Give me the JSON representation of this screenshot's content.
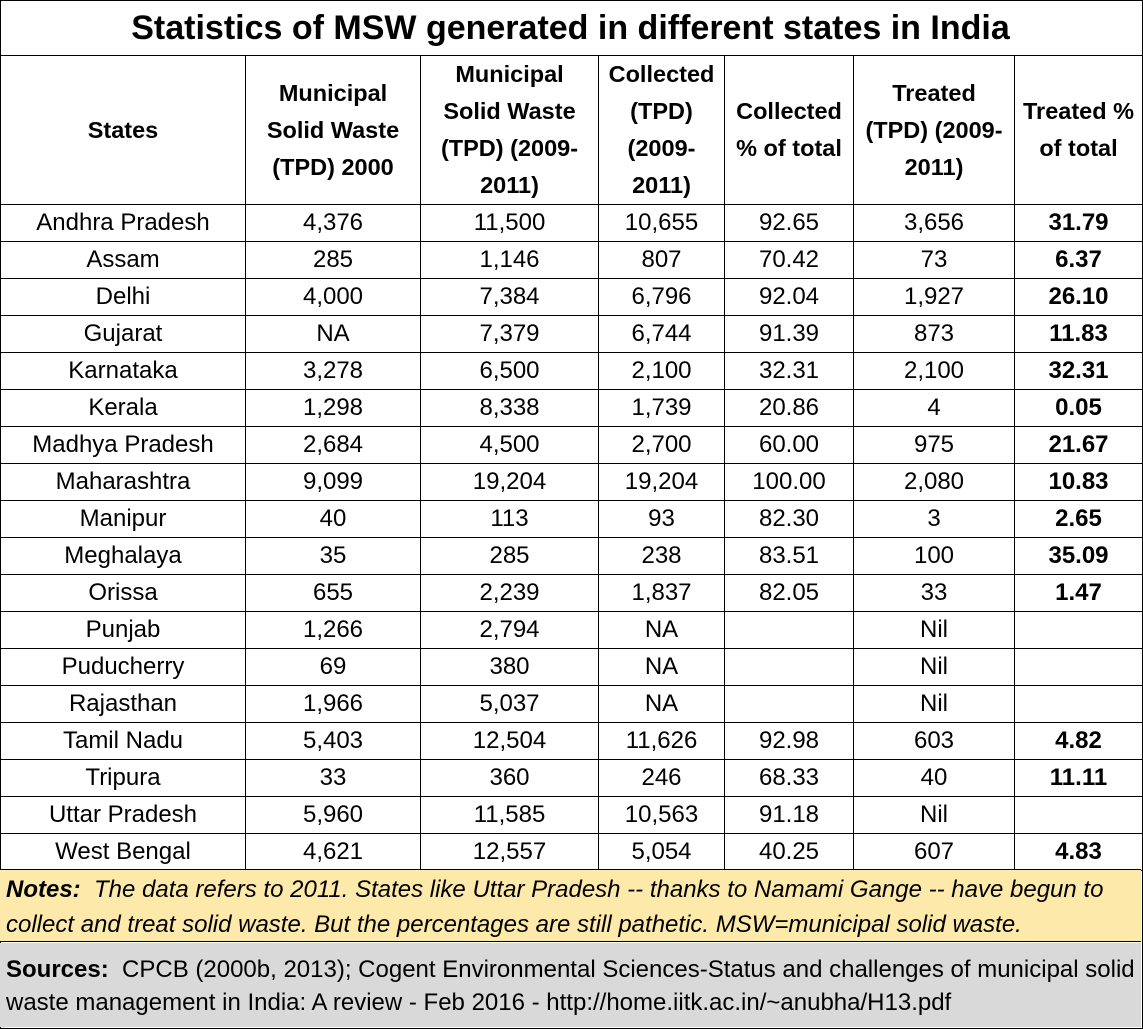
{
  "title": "Statistics of MSW generated in different states in India",
  "chart_data": {
    "type": "table",
    "title": "Statistics of MSW generated in different states in India",
    "columns": [
      "States",
      "Municipal Solid Waste (TPD) 2000",
      "Municipal Solid Waste (TPD) (2009-2011)",
      "Collected (TPD) (2009-2011)",
      "Collected % of total",
      "Treated (TPD) (2009-2011)",
      "Treated % of total"
    ],
    "rows": [
      [
        "Andhra Pradesh",
        "4,376",
        "11,500",
        "10,655",
        "92.65",
        "3,656",
        "31.79"
      ],
      [
        "Assam",
        "285",
        "1,146",
        "807",
        "70.42",
        "73",
        "6.37"
      ],
      [
        "Delhi",
        "4,000",
        "7,384",
        "6,796",
        "92.04",
        "1,927",
        "26.10"
      ],
      [
        "Gujarat",
        "NA",
        "7,379",
        "6,744",
        "91.39",
        "873",
        "11.83"
      ],
      [
        "Karnataka",
        "3,278",
        "6,500",
        "2,100",
        "32.31",
        "2,100",
        "32.31"
      ],
      [
        "Kerala",
        "1,298",
        "8,338",
        "1,739",
        "20.86",
        "4",
        "0.05"
      ],
      [
        "Madhya Pradesh",
        "2,684",
        "4,500",
        "2,700",
        "60.00",
        "975",
        "21.67"
      ],
      [
        "Maharashtra",
        "9,099",
        "19,204",
        "19,204",
        "100.00",
        "2,080",
        "10.83"
      ],
      [
        "Manipur",
        "40",
        "113",
        "93",
        "82.30",
        "3",
        "2.65"
      ],
      [
        "Meghalaya",
        "35",
        "285",
        "238",
        "83.51",
        "100",
        "35.09"
      ],
      [
        "Orissa",
        "655",
        "2,239",
        "1,837",
        "82.05",
        "33",
        "1.47"
      ],
      [
        "Punjab",
        "1,266",
        "2,794",
        "NA",
        "",
        "Nil",
        ""
      ],
      [
        "Puducherry",
        "69",
        "380",
        "NA",
        "",
        "Nil",
        ""
      ],
      [
        "Rajasthan",
        "1,966",
        "5,037",
        "NA",
        "",
        "Nil",
        ""
      ],
      [
        "Tamil Nadu",
        "5,403",
        "12,504",
        "11,626",
        "92.98",
        "603",
        "4.82"
      ],
      [
        "Tripura",
        "33",
        "360",
        "246",
        "68.33",
        "40",
        "11.11"
      ],
      [
        "Uttar Pradesh",
        "5,960",
        "11,585",
        "10,563",
        "91.18",
        "Nil",
        ""
      ],
      [
        "West Bengal",
        "4,621",
        "12,557",
        "5,054",
        "40.25",
        "607",
        "4.83"
      ]
    ]
  },
  "header_lines": [
    [
      "States"
    ],
    [
      "Municipal",
      "Solid Waste",
      "(TPD) 2000"
    ],
    [
      "Municipal",
      "Solid Waste",
      "(TPD) (2009-",
      "2011)"
    ],
    [
      "Collected",
      "(TPD)",
      "(2009-",
      "2011)"
    ],
    [
      "Collected",
      "% of total"
    ],
    [
      "Treated",
      "(TPD) (2009-",
      "2011)"
    ],
    [
      "Treated %",
      "of total"
    ]
  ],
  "notes": {
    "label": "Notes:",
    "text": "The data refers to 2011.  States like Uttar Pradesh -- thanks to Namami Gange -- have begun to collect and treat solid waste.  But the percentages are still pathetic. MSW=municipal solid waste.",
    "background": "#fde9a9"
  },
  "sources": {
    "label": "Sources:",
    "text": "CPCB (2000b, 2013); Cogent Environmental Sciences-Status and challenges of municipal solid waste management in India: A review - Feb 2016 - http://home.iitk.ac.in/~anubha/H13.pdf",
    "background": "#d9d9d9"
  }
}
